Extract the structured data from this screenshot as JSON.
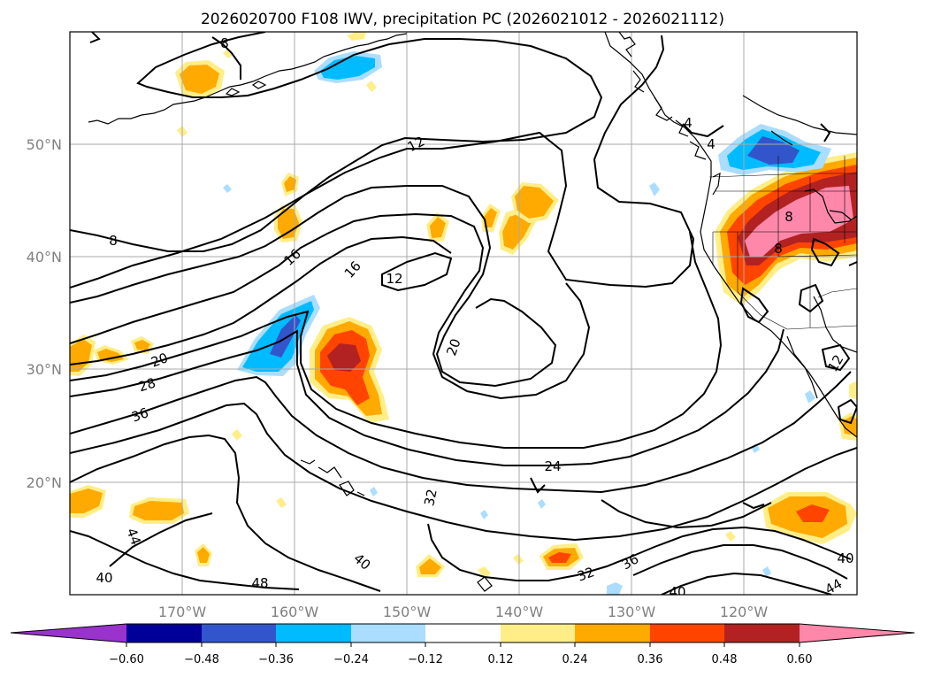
{
  "title": "2026020700 F108 IWV, precipitation PC (2026021012 - 2026021112)",
  "map": {
    "lon_ticks": [
      "170°W",
      "160°W",
      "150°W",
      "140°W",
      "130°W",
      "120°W"
    ],
    "lat_ticks": [
      "50°N",
      "40°N",
      "30°N",
      "20°N"
    ],
    "lon_range": [
      -180,
      -110
    ],
    "lat_range": [
      10,
      60
    ],
    "contour_labels": [
      "8",
      "8",
      "12",
      "12",
      "16",
      "16",
      "20",
      "20",
      "24",
      "28",
      "32",
      "32",
      "36",
      "36",
      "40",
      "40",
      "40",
      "40",
      "44",
      "44",
      "48",
      "4",
      "4",
      "8",
      "8",
      "12"
    ]
  },
  "colorbar": {
    "tick_labels": [
      "−0.60",
      "−0.48",
      "−0.36",
      "−0.24",
      "−0.12",
      "0.12",
      "0.24",
      "0.36",
      "0.48",
      "0.60"
    ],
    "colors": [
      "#9933cc",
      "#000099",
      "#3355cc",
      "#00bbff",
      "#aaddff",
      "#ffffff",
      "#ffee88",
      "#ffaa00",
      "#ff4400",
      "#b22222",
      "#ff88aa"
    ]
  }
}
